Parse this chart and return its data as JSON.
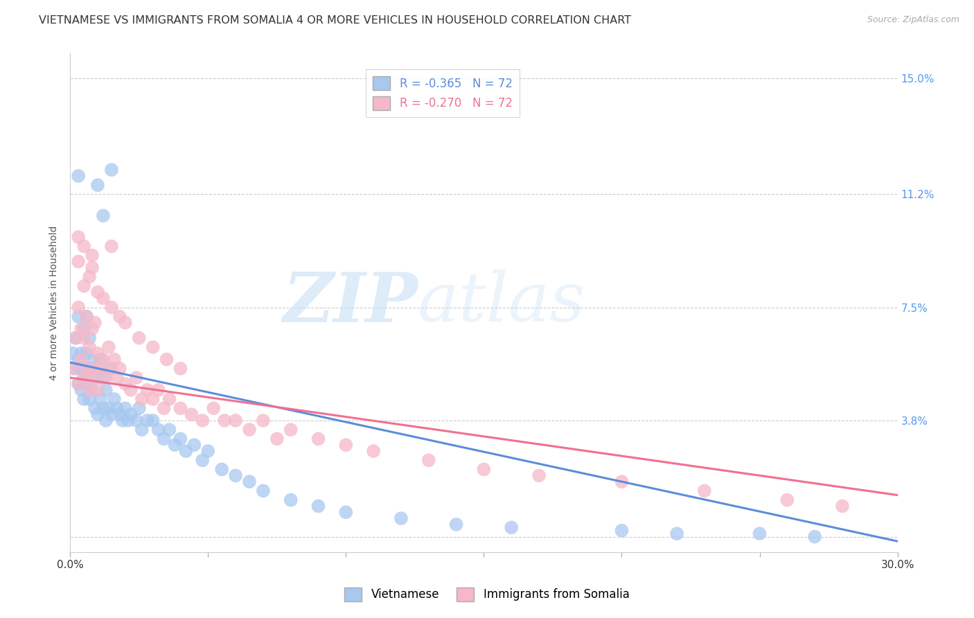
{
  "title": "VIETNAMESE VS IMMIGRANTS FROM SOMALIA 4 OR MORE VEHICLES IN HOUSEHOLD CORRELATION CHART",
  "source": "Source: ZipAtlas.com",
  "ylabel": "4 or more Vehicles in Household",
  "xlim": [
    0.0,
    0.3
  ],
  "ylim": [
    -0.005,
    0.158
  ],
  "yticks": [
    0.0,
    0.038,
    0.075,
    0.112,
    0.15
  ],
  "ytick_labels": [
    "",
    "3.8%",
    "7.5%",
    "11.2%",
    "15.0%"
  ],
  "xticks": [
    0.0,
    0.05,
    0.1,
    0.15,
    0.2,
    0.25,
    0.3
  ],
  "xtick_labels": [
    "0.0%",
    "",
    "",
    "",
    "",
    "",
    "30.0%"
  ],
  "grid_color": "#cccccc",
  "background_color": "#ffffff",
  "blue_color": "#a8c8f0",
  "pink_color": "#f5b8c8",
  "blue_line_color": "#5b8dd9",
  "pink_line_color": "#f07090",
  "r_blue": -0.365,
  "r_pink": -0.27,
  "n_blue": 72,
  "n_pink": 72,
  "legend_labels": [
    "Vietnamese",
    "Immigrants from Somalia"
  ],
  "watermark_zip": "ZIP",
  "watermark_atlas": "atlas",
  "title_fontsize": 11.5,
  "axis_label_fontsize": 10,
  "tick_fontsize": 11,
  "right_tick_color": "#5599ee",
  "blue_intercept": 0.057,
  "blue_slope": -0.195,
  "pink_intercept": 0.052,
  "pink_slope": -0.128,
  "vietnamese_x": [
    0.001,
    0.002,
    0.002,
    0.003,
    0.003,
    0.003,
    0.004,
    0.004,
    0.004,
    0.005,
    0.005,
    0.005,
    0.006,
    0.006,
    0.006,
    0.007,
    0.007,
    0.007,
    0.008,
    0.008,
    0.009,
    0.009,
    0.01,
    0.01,
    0.011,
    0.011,
    0.012,
    0.012,
    0.013,
    0.013,
    0.014,
    0.014,
    0.015,
    0.016,
    0.017,
    0.018,
    0.019,
    0.02,
    0.021,
    0.022,
    0.024,
    0.025,
    0.026,
    0.028,
    0.03,
    0.032,
    0.034,
    0.036,
    0.038,
    0.04,
    0.042,
    0.045,
    0.048,
    0.05,
    0.055,
    0.06,
    0.065,
    0.07,
    0.08,
    0.09,
    0.1,
    0.12,
    0.14,
    0.16,
    0.2,
    0.22,
    0.25,
    0.27,
    0.01,
    0.012,
    0.015,
    0.003
  ],
  "vietnamese_y": [
    0.06,
    0.055,
    0.065,
    0.05,
    0.058,
    0.072,
    0.048,
    0.055,
    0.06,
    0.045,
    0.052,
    0.068,
    0.05,
    0.06,
    0.072,
    0.045,
    0.055,
    0.065,
    0.048,
    0.058,
    0.042,
    0.055,
    0.04,
    0.052,
    0.045,
    0.058,
    0.042,
    0.052,
    0.038,
    0.048,
    0.042,
    0.055,
    0.04,
    0.045,
    0.042,
    0.04,
    0.038,
    0.042,
    0.038,
    0.04,
    0.038,
    0.042,
    0.035,
    0.038,
    0.038,
    0.035,
    0.032,
    0.035,
    0.03,
    0.032,
    0.028,
    0.03,
    0.025,
    0.028,
    0.022,
    0.02,
    0.018,
    0.015,
    0.012,
    0.01,
    0.008,
    0.006,
    0.004,
    0.003,
    0.002,
    0.001,
    0.001,
    0.0,
    0.115,
    0.105,
    0.12,
    0.118
  ],
  "somalia_x": [
    0.001,
    0.002,
    0.003,
    0.003,
    0.004,
    0.004,
    0.005,
    0.005,
    0.006,
    0.006,
    0.007,
    0.007,
    0.008,
    0.008,
    0.009,
    0.009,
    0.01,
    0.01,
    0.011,
    0.012,
    0.013,
    0.014,
    0.015,
    0.016,
    0.017,
    0.018,
    0.02,
    0.022,
    0.024,
    0.026,
    0.028,
    0.03,
    0.032,
    0.034,
    0.036,
    0.04,
    0.044,
    0.048,
    0.052,
    0.056,
    0.06,
    0.065,
    0.07,
    0.075,
    0.08,
    0.09,
    0.1,
    0.11,
    0.13,
    0.15,
    0.17,
    0.2,
    0.23,
    0.26,
    0.28,
    0.003,
    0.005,
    0.007,
    0.008,
    0.01,
    0.012,
    0.015,
    0.018,
    0.02,
    0.025,
    0.03,
    0.035,
    0.04,
    0.015,
    0.008,
    0.005,
    0.003
  ],
  "somalia_y": [
    0.055,
    0.065,
    0.05,
    0.075,
    0.058,
    0.068,
    0.052,
    0.065,
    0.055,
    0.072,
    0.048,
    0.062,
    0.052,
    0.068,
    0.055,
    0.07,
    0.048,
    0.06,
    0.055,
    0.058,
    0.052,
    0.062,
    0.055,
    0.058,
    0.052,
    0.055,
    0.05,
    0.048,
    0.052,
    0.045,
    0.048,
    0.045,
    0.048,
    0.042,
    0.045,
    0.042,
    0.04,
    0.038,
    0.042,
    0.038,
    0.038,
    0.035,
    0.038,
    0.032,
    0.035,
    0.032,
    0.03,
    0.028,
    0.025,
    0.022,
    0.02,
    0.018,
    0.015,
    0.012,
    0.01,
    0.09,
    0.082,
    0.085,
    0.088,
    0.08,
    0.078,
    0.075,
    0.072,
    0.07,
    0.065,
    0.062,
    0.058,
    0.055,
    0.095,
    0.092,
    0.095,
    0.098
  ]
}
